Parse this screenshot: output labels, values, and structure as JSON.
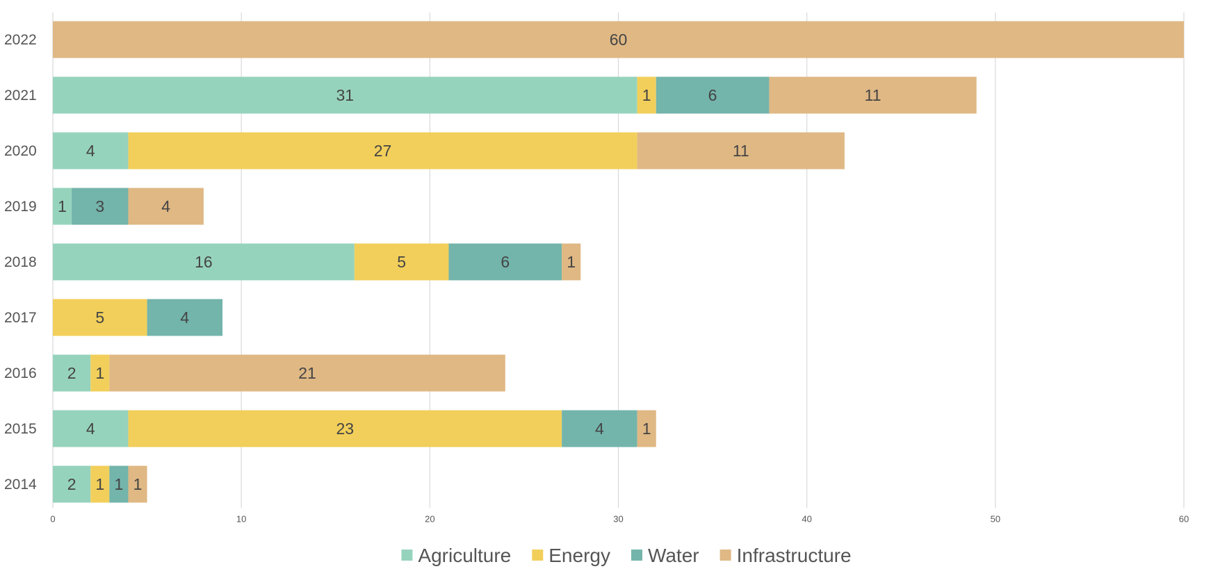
{
  "chart_data": {
    "type": "bar",
    "orientation": "horizontal",
    "stacked": true,
    "categories": [
      "2022",
      "2021",
      "2020",
      "2019",
      "2018",
      "2017",
      "2016",
      "2015",
      "2014"
    ],
    "series": [
      {
        "name": "Agriculture",
        "color": "#96d3bd",
        "values": [
          0,
          31,
          4,
          1,
          16,
          0,
          2,
          4,
          2
        ]
      },
      {
        "name": "Energy",
        "color": "#f2cf5b",
        "values": [
          0,
          1,
          27,
          0,
          5,
          5,
          1,
          23,
          1
        ]
      },
      {
        "name": "Water",
        "color": "#73b4ab",
        "values": [
          0,
          6,
          0,
          3,
          6,
          4,
          0,
          4,
          1
        ]
      },
      {
        "name": "Infrastructure",
        "color": "#dfb884",
        "values": [
          60,
          11,
          11,
          4,
          1,
          0,
          21,
          1,
          1
        ]
      }
    ],
    "xlim": [
      0,
      60
    ],
    "x_ticks": [
      "0",
      "10",
      "20",
      "30",
      "40",
      "50",
      "60"
    ],
    "title": "",
    "xlabel": "",
    "ylabel": "",
    "grid": "vertical",
    "legend_position": "bottom-center",
    "data_labels": true
  }
}
